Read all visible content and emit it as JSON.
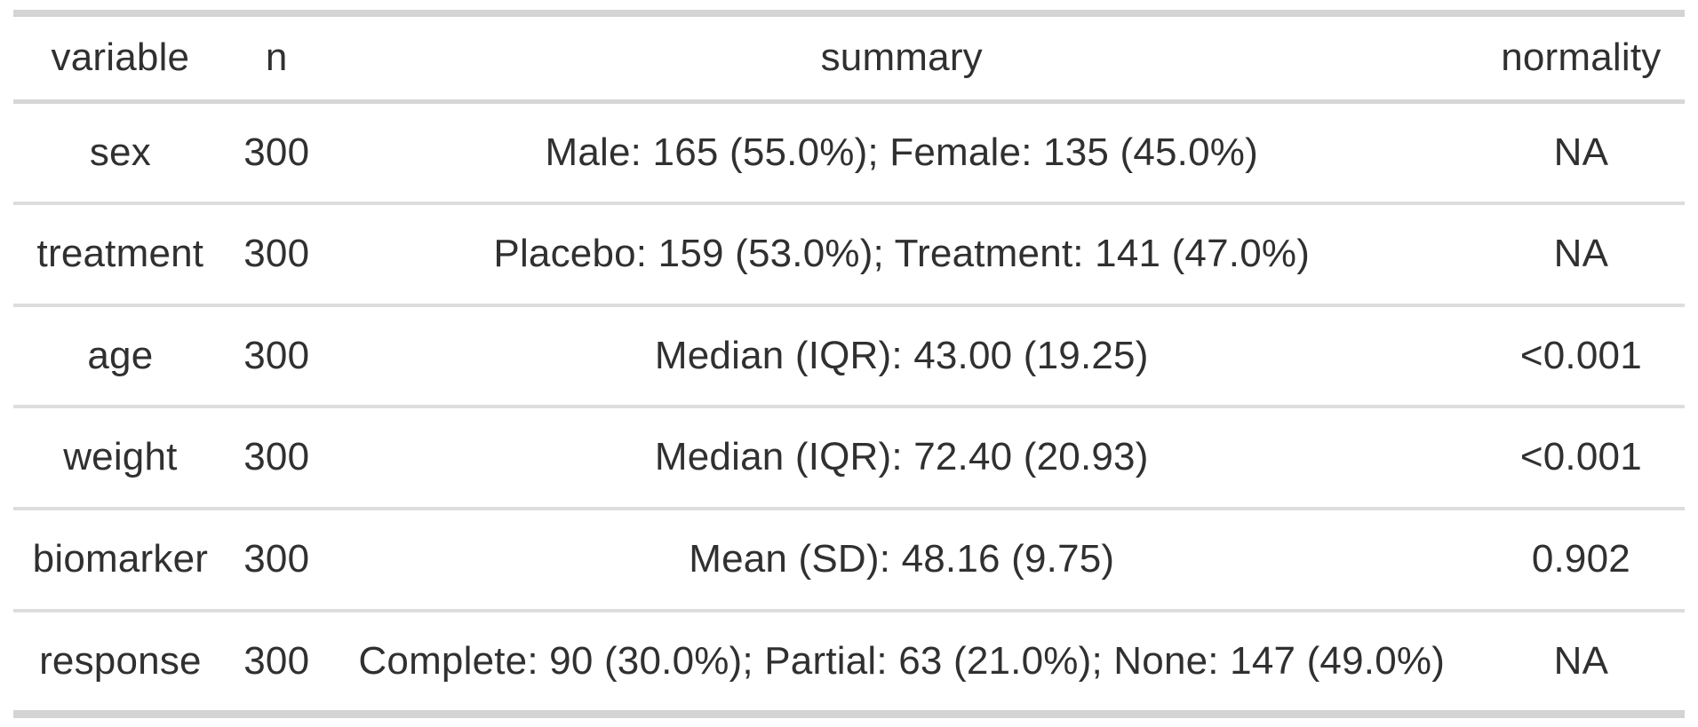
{
  "table": {
    "columns": [
      "variable",
      "n",
      "summary",
      "normality"
    ],
    "rows": [
      [
        "sex",
        "300",
        "Male: 165 (55.0%); Female: 135 (45.0%)",
        "NA"
      ],
      [
        "treatment",
        "300",
        "Placebo: 159 (53.0%); Treatment: 141 (47.0%)",
        "NA"
      ],
      [
        "age",
        "300",
        "Median (IQR): 43.00 (19.25)",
        "<0.001"
      ],
      [
        "weight",
        "300",
        "Median (IQR): 72.40 (20.93)",
        "<0.001"
      ],
      [
        "biomarker",
        "300",
        "Mean (SD): 48.16 (9.75)",
        "0.902"
      ],
      [
        "response",
        "300",
        "Complete: 90 (30.0%); Partial: 63 (21.0%); None: 147 (49.0%)",
        "NA"
      ]
    ]
  },
  "chart_data": {
    "type": "table",
    "title": "",
    "columns": [
      "variable",
      "n",
      "summary",
      "normality"
    ],
    "rows": [
      {
        "variable": "sex",
        "n": 300,
        "summary": "Male: 165 (55.0%); Female: 135 (45.0%)",
        "normality": "NA"
      },
      {
        "variable": "treatment",
        "n": 300,
        "summary": "Placebo: 159 (53.0%); Treatment: 141 (47.0%)",
        "normality": "NA"
      },
      {
        "variable": "age",
        "n": 300,
        "summary": "Median (IQR): 43.00 (19.25)",
        "normality": "<0.001"
      },
      {
        "variable": "weight",
        "n": 300,
        "summary": "Median (IQR): 72.40 (20.93)",
        "normality": "<0.001"
      },
      {
        "variable": "biomarker",
        "n": 300,
        "summary": "Mean (SD): 48.16 (9.75)",
        "normality": "0.902"
      },
      {
        "variable": "response",
        "n": 300,
        "summary": "Complete: 90 (30.0%); Partial: 63 (21.0%); None: 147 (49.0%)",
        "normality": "NA"
      }
    ],
    "layout_hints": {
      "alignment": "center",
      "heavy_rules": [
        "top",
        "bottom"
      ],
      "medium_rule": "below-header",
      "light_rules": "between-rows"
    }
  },
  "colors": {
    "background": "#ffffff",
    "text": "#303030",
    "rule_heavy": "#d4d4d4",
    "rule_medium": "#d7d7d7",
    "rule_light": "#dddddd"
  }
}
